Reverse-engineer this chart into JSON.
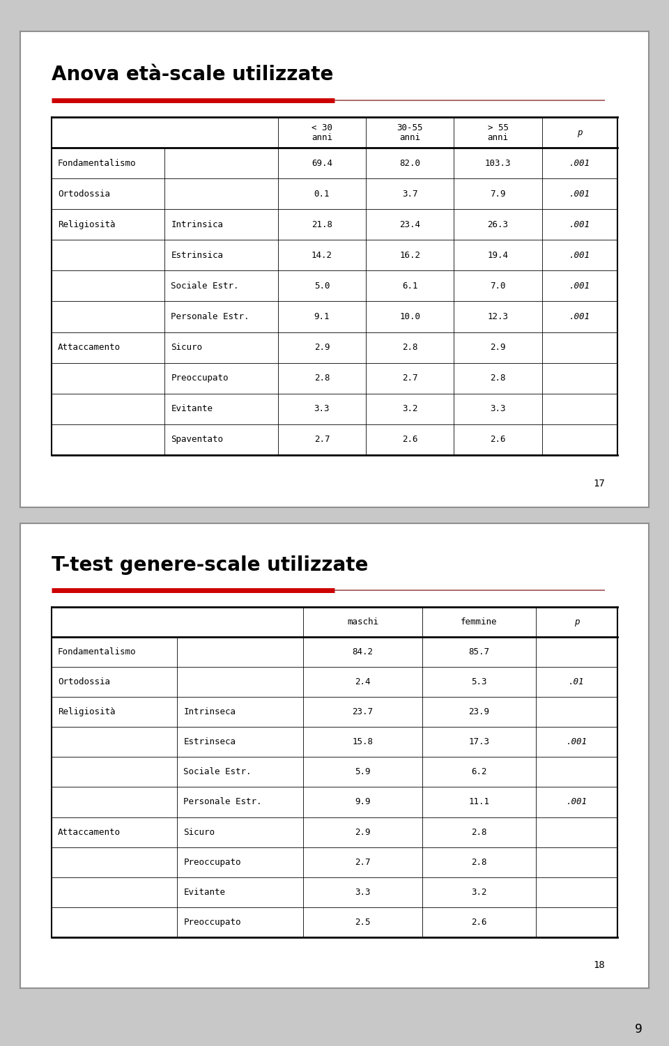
{
  "page_bg": "#c8c8c8",
  "slide_bg": "#ffffff",
  "slide1": {
    "title": "Anova età-scale utilizzate",
    "page_num": "17",
    "col_headers": [
      "< 30\nanni",
      "30-55\nanni",
      "> 55\nanni",
      "p"
    ],
    "rows": [
      {
        "cat": "Fondamentalismo",
        "sub": "",
        "v1": "69.4",
        "v2": "82.0",
        "v3": "103.3",
        "p": ".001"
      },
      {
        "cat": "Ortodossia",
        "sub": "",
        "v1": "0.1",
        "v2": "3.7",
        "v3": "7.9",
        "p": ".001"
      },
      {
        "cat": "Religiosità",
        "sub": "Intrinsica",
        "v1": "21.8",
        "v2": "23.4",
        "v3": "26.3",
        "p": ".001"
      },
      {
        "cat": "",
        "sub": "Estrinsica",
        "v1": "14.2",
        "v2": "16.2",
        "v3": "19.4",
        "p": ".001"
      },
      {
        "cat": "",
        "sub": "Sociale Estr.",
        "v1": "5.0",
        "v2": "6.1",
        "v3": "7.0",
        "p": ".001"
      },
      {
        "cat": "",
        "sub": "Personale Estr.",
        "v1": "9.1",
        "v2": "10.0",
        "v3": "12.3",
        "p": ".001"
      },
      {
        "cat": "Attaccamento",
        "sub": "Sicuro",
        "v1": "2.9",
        "v2": "2.8",
        "v3": "2.9",
        "p": ""
      },
      {
        "cat": "",
        "sub": "Preoccupato",
        "v1": "2.8",
        "v2": "2.7",
        "v3": "2.8",
        "p": ""
      },
      {
        "cat": "",
        "sub": "Evitante",
        "v1": "3.3",
        "v2": "3.2",
        "v3": "3.3",
        "p": ""
      },
      {
        "cat": "",
        "sub": "Spaventato",
        "v1": "2.7",
        "v2": "2.6",
        "v3": "2.6",
        "p": ""
      }
    ]
  },
  "slide2": {
    "title": "T-test genere-scale utilizzate",
    "page_num": "18",
    "col_headers": [
      "maschi",
      "femmine",
      "p"
    ],
    "rows": [
      {
        "cat": "Fondamentalismo",
        "sub": "",
        "v1": "84.2",
        "v2": "85.7",
        "p": ""
      },
      {
        "cat": "Ortodossia",
        "sub": "",
        "v1": "2.4",
        "v2": "5.3",
        "p": ".01"
      },
      {
        "cat": "Religiosità",
        "sub": "Intrinseca",
        "v1": "23.7",
        "v2": "23.9",
        "p": ""
      },
      {
        "cat": "",
        "sub": "Estrinseca",
        "v1": "15.8",
        "v2": "17.3",
        "p": ".001"
      },
      {
        "cat": "",
        "sub": "Sociale Estr.",
        "v1": "5.9",
        "v2": "6.2",
        "p": ""
      },
      {
        "cat": "",
        "sub": "Personale Estr.",
        "v1": "9.9",
        "v2": "11.1",
        "p": ".001"
      },
      {
        "cat": "Attaccamento",
        "sub": "Sicuro",
        "v1": "2.9",
        "v2": "2.8",
        "p": ""
      },
      {
        "cat": "",
        "sub": "Preoccupato",
        "v1": "2.7",
        "v2": "2.8",
        "p": ""
      },
      {
        "cat": "",
        "sub": "Evitante",
        "v1": "3.3",
        "v2": "3.2",
        "p": ""
      },
      {
        "cat": "",
        "sub": "Preoccupato",
        "v1": "2.5",
        "v2": "2.6",
        "p": ""
      }
    ]
  },
  "red_color": "#cc0000",
  "thin_line_color": "#a05050",
  "table_border": "#000000",
  "text_color": "#000000",
  "slide_border": "#909090",
  "page_number": "9"
}
